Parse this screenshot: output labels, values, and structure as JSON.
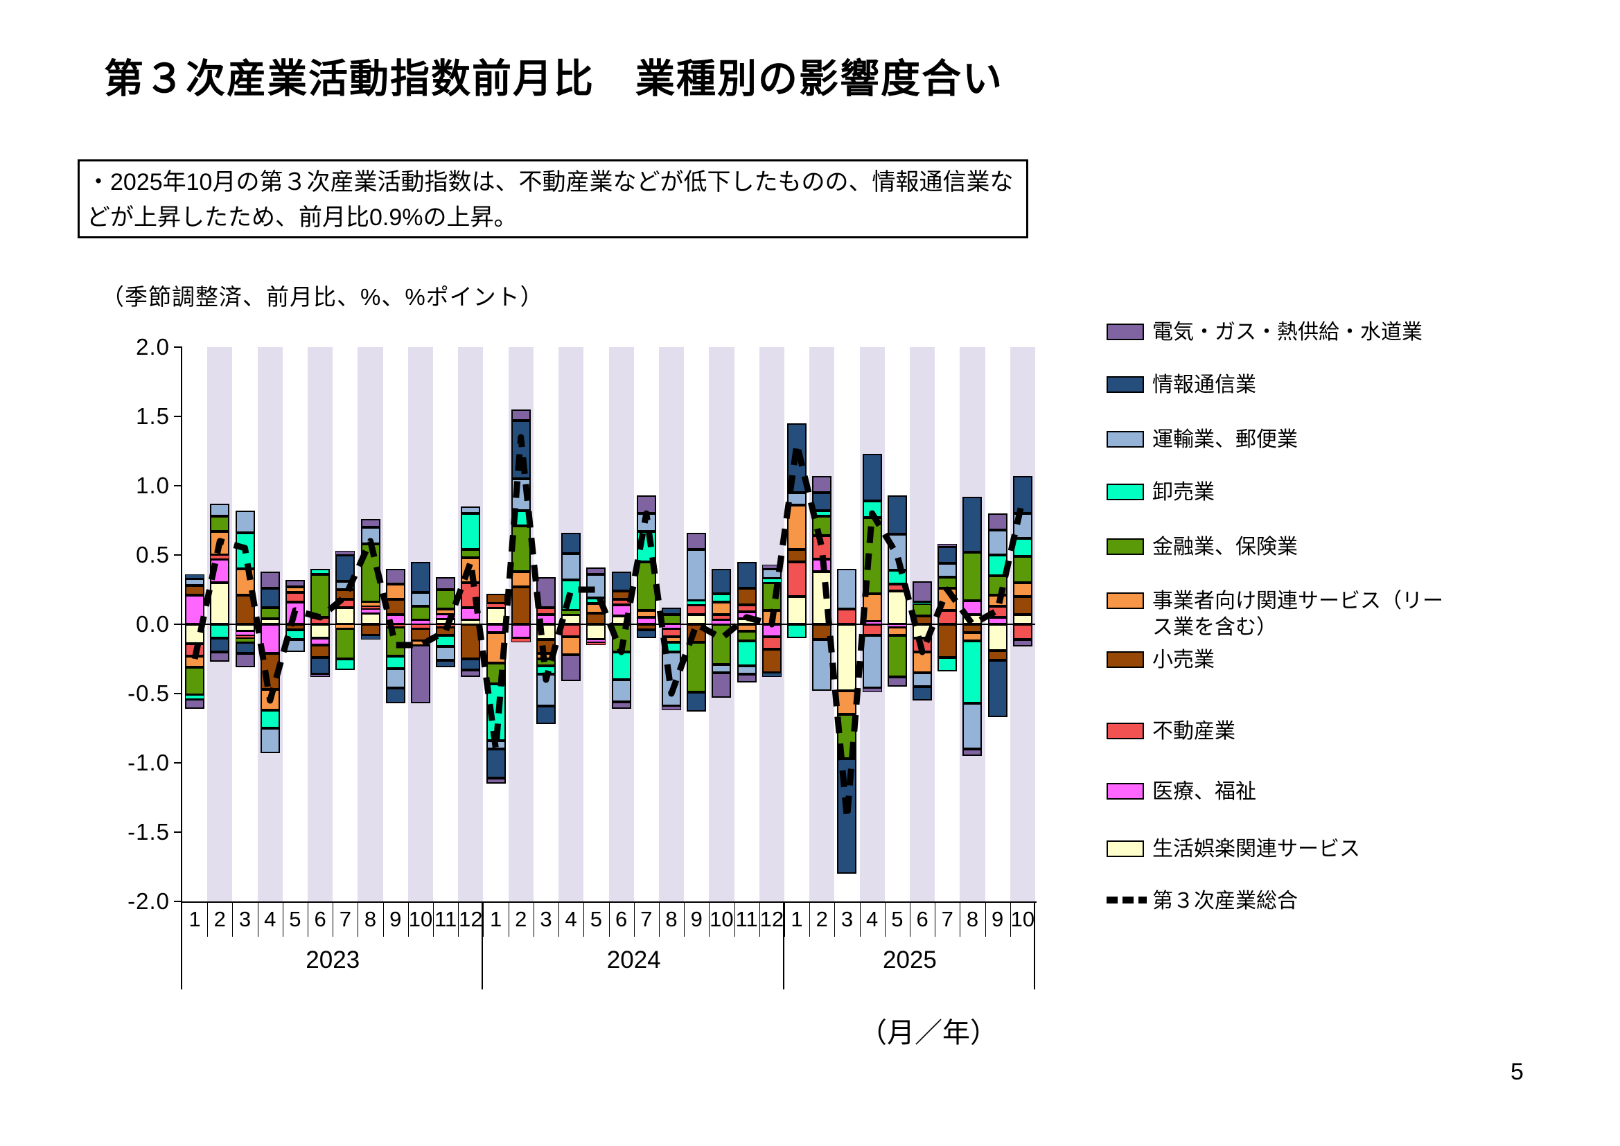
{
  "page": {
    "title": "第３次産業活動指数前月比　業種別の影響度合い",
    "note": "・2025年10月の第３次産業活動指数は、不動産業などが低下したものの、情報通信業などが上昇したため、前月比0.9%の上昇。",
    "subtitle": "（季節調整済、前月比、%、%ポイント）",
    "axis_unit": "（月／年）",
    "page_number": "5"
  },
  "chart_data": {
    "type": "bar",
    "subtype": "stacked-bar-with-dashed-total-line",
    "ylim": [
      -2.0,
      2.0
    ],
    "ytick_labels": [
      "2.0",
      "1.5",
      "1.0",
      "0.5",
      "0.0",
      "-0.5",
      "-1.0",
      "-1.5",
      "-2.0"
    ],
    "band_color": "#E3DEEE",
    "years": [
      {
        "label": "2023",
        "months": [
          "1",
          "2",
          "3",
          "4",
          "5",
          "6",
          "7",
          "8",
          "9",
          "10",
          "11",
          "12"
        ]
      },
      {
        "label": "2024",
        "months": [
          "1",
          "2",
          "3",
          "4",
          "5",
          "6",
          "7",
          "8",
          "9",
          "10",
          "11",
          "12"
        ]
      },
      {
        "label": "2025",
        "months": [
          "1",
          "2",
          "3",
          "4",
          "5",
          "6",
          "7",
          "8",
          "9",
          "10"
        ]
      }
    ],
    "series": [
      {
        "key": "life",
        "name": "生活娯楽関連サービス",
        "color": "#FFFFCC",
        "values": [
          -0.14,
          0.3,
          -0.05,
          0.04,
          0.0,
          -0.1,
          0.12,
          0.08,
          0.0,
          0.0,
          0.04,
          0.03,
          0.12,
          0.0,
          -0.11,
          0.07,
          -0.11,
          0.06,
          0.0,
          0.0,
          0.07,
          0.0,
          0.04,
          0.0,
          0.2,
          0.38,
          -0.48,
          0.0,
          0.24,
          -0.1,
          0.0,
          0.07,
          -0.19,
          0.07
        ]
      },
      {
        "key": "medical",
        "name": "医療、福祉",
        "color": "#FF66FF",
        "values": [
          0.21,
          0.17,
          -0.03,
          -0.21,
          0.16,
          -0.05,
          0.0,
          0.03,
          0.07,
          0.03,
          0.03,
          0.09,
          -0.06,
          -0.1,
          0.07,
          0.0,
          -0.02,
          0.08,
          0.05,
          -0.03,
          0.0,
          0.03,
          0.05,
          -0.09,
          0.0,
          0.09,
          0.0,
          0.02,
          -0.02,
          0.0,
          0.0,
          0.1,
          0.05,
          0.0
        ]
      },
      {
        "key": "estate",
        "name": "不動産業",
        "color": "#F25252",
        "values": [
          -0.09,
          0.03,
          -0.02,
          0.0,
          0.07,
          0.05,
          0.06,
          0.02,
          -0.02,
          -0.03,
          -0.02,
          0.18,
          0.03,
          -0.03,
          0.05,
          -0.09,
          -0.02,
          0.04,
          0.0,
          -0.06,
          0.07,
          0.04,
          0.05,
          -0.09,
          0.25,
          0.17,
          0.11,
          -0.08,
          0.05,
          -0.1,
          0.1,
          0.0,
          0.08,
          -0.11
        ]
      },
      {
        "key": "retail",
        "name": "小売業",
        "color": "#974706",
        "values": [
          0.07,
          0.0,
          0.21,
          -0.26,
          -0.04,
          -0.09,
          0.07,
          -0.08,
          0.11,
          -0.09,
          -0.06,
          -0.25,
          0.07,
          0.27,
          -0.1,
          0.0,
          0.08,
          0.06,
          -0.04,
          0.0,
          -0.13,
          0.0,
          0.12,
          -0.17,
          0.09,
          -0.11,
          0.0,
          0.0,
          0.0,
          0.06,
          -0.24,
          -0.06,
          -0.07,
          0.13
        ]
      },
      {
        "key": "biz",
        "name": "事業者向け関連サービス（リース業を含む）",
        "color": "#F79646",
        "values": [
          -0.08,
          0.17,
          0.19,
          -0.15,
          0.04,
          0.0,
          -0.03,
          0.03,
          0.11,
          -0.03,
          0.04,
          0.18,
          -0.22,
          0.11,
          -0.04,
          -0.13,
          0.07,
          0.0,
          0.05,
          -0.04,
          0.0,
          0.09,
          -0.05,
          0.1,
          0.32,
          0.0,
          -0.17,
          0.2,
          -0.06,
          -0.15,
          0.16,
          -0.06,
          0.08,
          0.1
        ]
      },
      {
        "key": "fin",
        "name": "金融業、保険業",
        "color": "#5A9907",
        "values": [
          -0.2,
          0.11,
          -0.03,
          0.08,
          0.0,
          0.31,
          -0.22,
          0.42,
          -0.21,
          0.1,
          0.14,
          0.06,
          -0.15,
          0.33,
          -0.05,
          0.03,
          0.0,
          -0.2,
          0.35,
          0.07,
          -0.36,
          -0.29,
          -0.07,
          0.2,
          0.0,
          0.14,
          -0.32,
          0.55,
          -0.3,
          0.09,
          0.08,
          0.35,
          0.14,
          0.19
        ]
      },
      {
        "key": "whole",
        "name": "卸売業",
        "color": "#00FFC0",
        "values": [
          -0.03,
          -0.1,
          0.26,
          -0.13,
          -0.07,
          0.04,
          -0.08,
          0.0,
          -0.09,
          0.0,
          -0.08,
          0.26,
          -0.41,
          0.11,
          -0.06,
          0.22,
          0.04,
          -0.2,
          0.22,
          -0.07,
          0.03,
          0.06,
          -0.18,
          0.03,
          -0.1,
          0.04,
          0.0,
          0.12,
          0.1,
          0.01,
          -0.1,
          -0.45,
          0.15,
          0.13
        ]
      },
      {
        "key": "trans",
        "name": "運輸業、郵便業",
        "color": "#95B3D7",
        "values": [
          0.05,
          0.09,
          0.16,
          -0.18,
          -0.09,
          0.0,
          0.06,
          0.12,
          -0.14,
          0.1,
          -0.1,
          0.05,
          -0.06,
          0.23,
          -0.23,
          0.19,
          0.17,
          -0.16,
          0.13,
          -0.39,
          0.37,
          -0.06,
          -0.06,
          0.07,
          0.09,
          -0.37,
          0.29,
          -0.38,
          0.26,
          -0.1,
          0.1,
          -0.33,
          0.18,
          0.18
        ]
      },
      {
        "key": "info",
        "name": "情報通信業",
        "color": "#254E7D",
        "values": [
          0.03,
          -0.1,
          -0.08,
          0.14,
          0.0,
          -0.12,
          0.19,
          -0.03,
          -0.11,
          0.22,
          -0.05,
          -0.08,
          -0.21,
          0.42,
          -0.13,
          0.15,
          0.0,
          0.14,
          -0.06,
          0.05,
          -0.14,
          0.18,
          0.19,
          -0.03,
          0.5,
          0.13,
          -0.83,
          0.34,
          0.28,
          -0.1,
          0.12,
          0.4,
          -0.41,
          0.27
        ]
      },
      {
        "key": "elec",
        "name": "電気・ガス・熱供給・水道業",
        "color": "#8064A2",
        "values": [
          -0.07,
          -0.07,
          -0.1,
          0.12,
          0.05,
          -0.02,
          0.03,
          0.06,
          0.11,
          -0.42,
          0.09,
          -0.05,
          -0.04,
          0.08,
          0.22,
          -0.19,
          0.05,
          -0.05,
          0.13,
          -0.03,
          0.12,
          -0.18,
          -0.06,
          0.03,
          0.0,
          0.12,
          0.0,
          -0.03,
          -0.07,
          0.15,
          0.02,
          -0.05,
          0.12,
          -0.05
        ]
      }
    ],
    "legend_order": [
      "elec",
      "info",
      "trans",
      "whole",
      "fin",
      "biz",
      "retail",
      "estate",
      "medical",
      "life"
    ],
    "total_line": {
      "key": "total",
      "name": "第３次産業総合",
      "color": "#000000",
      "style": "dashed",
      "values": [
        -0.25,
        0.6,
        0.55,
        -0.55,
        0.1,
        0.05,
        0.2,
        0.6,
        -0.15,
        -0.15,
        -0.05,
        0.45,
        -0.9,
        1.35,
        -0.4,
        0.25,
        0.25,
        -0.2,
        0.8,
        -0.5,
        0.0,
        -0.1,
        0.05,
        0.0,
        1.3,
        0.55,
        -1.4,
        0.8,
        0.5,
        -0.2,
        0.25,
        0.0,
        0.1,
        0.9
      ]
    }
  }
}
